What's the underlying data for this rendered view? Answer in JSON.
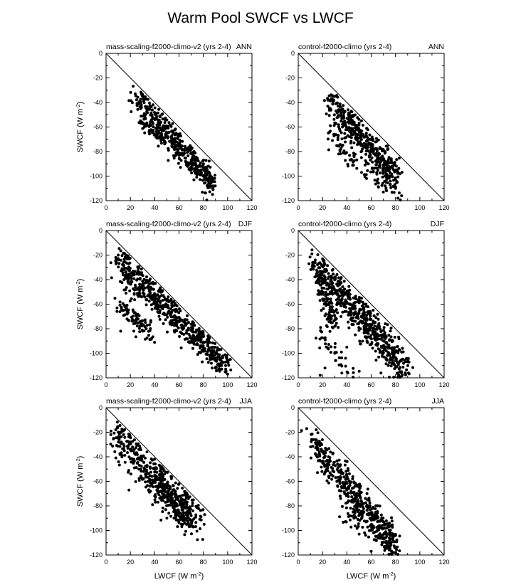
{
  "title": "Warm Pool SWCF vs LWCF",
  "chart_data": {
    "type": "scatter",
    "xlabel": "LWCF (W m",
    "xlabel_sup": "-2",
    "xlabel_end": ")",
    "ylabel": "SWCF (W m",
    "ylabel_sup": "-2",
    "ylabel_end": ")",
    "xlim": [
      0,
      120
    ],
    "ylim": [
      -120,
      0
    ],
    "x_ticks": [
      0,
      20,
      40,
      60,
      80,
      100,
      120
    ],
    "y_ticks": [
      0,
      -20,
      -40,
      -60,
      -80,
      -100,
      -120
    ],
    "reference_line": "1:1 (SWCF = -LWCF)",
    "marker_color": "#000000",
    "panels": [
      {
        "id": "mass-ann",
        "row": 0,
        "col": 0,
        "case": "mass-scaling-f2000-climo-v2 (yrs 2-4)",
        "season": "ANN",
        "trend": {
          "x": [
            24,
            88
          ],
          "y": [
            -35,
            -107
          ]
        },
        "spread": 5,
        "n": 420,
        "clusters": [
          {
            "x": [
              28,
              48
            ],
            "y": [
              -57,
              -70
            ],
            "n": 60
          }
        ],
        "points": [
          [
            24,
            -33
          ],
          [
            88,
            -108
          ],
          [
            86,
            -106
          ],
          [
            84,
            -104
          ],
          [
            80,
            -100
          ],
          [
            78,
            -98
          ]
        ]
      },
      {
        "id": "ctrl-ann",
        "row": 0,
        "col": 1,
        "case": "control-f2000-climo (yrs 2-4)",
        "season": "ANN",
        "trend": {
          "x": [
            25,
            80
          ],
          "y": [
            -39,
            -100
          ]
        },
        "spread": 6,
        "n": 420,
        "clusters": [
          {
            "x": [
              27,
              45
            ],
            "y": [
              -65,
              -90
            ],
            "n": 50
          },
          {
            "x": [
              55,
              85
            ],
            "y": [
              -95,
              -117
            ],
            "n": 40
          }
        ],
        "points": [
          [
            25,
            -38
          ],
          [
            84,
            -120
          ],
          [
            85,
            -116
          ],
          [
            82,
            -118
          ],
          [
            80,
            -110
          ],
          [
            70,
            -113
          ]
        ]
      },
      {
        "id": "mass-djf",
        "row": 1,
        "col": 0,
        "case": "mass-scaling-f2000-climo-v2 (yrs 2-4)",
        "season": "DJF",
        "trend": {
          "x": [
            8,
            98
          ],
          "y": [
            -23,
            -110
          ]
        },
        "spread": 6,
        "n": 560,
        "clusters": [
          {
            "x": [
              12,
              38
            ],
            "y": [
              -60,
              -85
            ],
            "n": 90
          },
          {
            "x": [
              15,
              28
            ],
            "y": [
              -35,
              -55
            ],
            "n": 30
          }
        ],
        "points": [
          [
            8,
            -22
          ],
          [
            10,
            -20
          ],
          [
            100,
            -117
          ],
          [
            98,
            -115
          ],
          [
            95,
            -110
          ],
          [
            90,
            -112
          ],
          [
            9,
            -63
          ],
          [
            12,
            -82
          ],
          [
            30,
            -82
          ],
          [
            33,
            -80
          ]
        ]
      },
      {
        "id": "ctrl-djf",
        "row": 1,
        "col": 1,
        "case": "control-f2000-climo (yrs 2-4)",
        "season": "DJF",
        "trend": {
          "x": [
            14,
            88
          ],
          "y": [
            -28,
            -112
          ]
        },
        "spread": 7,
        "n": 560,
        "clusters": [
          {
            "x": [
              14,
              30
            ],
            "y": [
              -30,
              -80
            ],
            "n": 110
          },
          {
            "x": [
              16,
              45
            ],
            "y": [
              -80,
              -118
            ],
            "n": 40
          }
        ],
        "points": [
          [
            14,
            -24
          ],
          [
            20,
            -23
          ],
          [
            88,
            -116
          ],
          [
            85,
            -115
          ],
          [
            18,
            -118
          ],
          [
            22,
            -112
          ],
          [
            30,
            -100
          ],
          [
            40,
            -95
          ]
        ]
      },
      {
        "id": "mass-jja",
        "row": 2,
        "col": 0,
        "case": "mass-scaling-f2000-climo-v2 (yrs 2-4)",
        "season": "JJA",
        "trend": {
          "x": [
            8,
            72
          ],
          "y": [
            -22,
            -92
          ]
        },
        "spread": 8,
        "n": 460,
        "clusters": [
          {
            "x": [
              40,
              65
            ],
            "y": [
              -60,
              -88
            ],
            "n": 80
          }
        ],
        "points": [
          [
            8,
            -18
          ],
          [
            10,
            -20
          ],
          [
            72,
            -97
          ],
          [
            68,
            -95
          ],
          [
            60,
            -92
          ],
          [
            50,
            -90
          ],
          [
            70,
            -88
          ]
        ]
      },
      {
        "id": "ctrl-jja",
        "row": 2,
        "col": 1,
        "case": "control-f2000-climo (yrs 2-4)",
        "season": "JJA",
        "trend": {
          "x": [
            11,
            78
          ],
          "y": [
            -27,
            -110
          ]
        },
        "spread": 6,
        "n": 460,
        "clusters": [
          {
            "x": [
              35,
              78
            ],
            "y": [
              -80,
              -118
            ],
            "n": 60
          }
        ],
        "points": [
          [
            11,
            -26
          ],
          [
            14,
            -26
          ],
          [
            78,
            -118
          ],
          [
            75,
            -116
          ],
          [
            72,
            -113
          ],
          [
            60,
            -117
          ],
          [
            68,
            -104
          ]
        ]
      }
    ]
  }
}
